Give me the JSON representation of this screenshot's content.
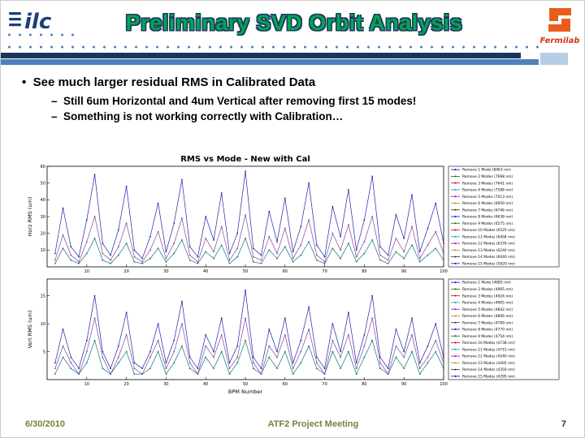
{
  "header": {
    "title": "Preliminary SVD Orbit Analysis",
    "ilc_logo_text": "ilc",
    "fermilab_logo_text": "Fermilab"
  },
  "bullets": {
    "main": "See much larger residual RMS in Calibrated Data",
    "sub_bullets": [
      "Still 6um Horizontal and 4um Vertical after removing first 15 modes!",
      "Something is not working correctly with Calibration…"
    ]
  },
  "footer": {
    "date": "6/30/2010",
    "meeting": "ATF2 Project Meeting",
    "page": "7"
  },
  "colors": {
    "title_green": "#00a651",
    "title_outline": "#1f3864",
    "bar_navy": "#17375e",
    "bar_blue": "#4f81bd",
    "bar_light": "#b8cce4",
    "dot_blue": "#4f81bd",
    "footer_olive": "#7e7d3a",
    "logo_navy": "#1b3f7a",
    "fermilab_red": "#d9341b"
  },
  "chart_style": {
    "legend_palette": [
      "#0000dd",
      "#007700",
      "#cc0000",
      "#00a0a0",
      "#aa00aa",
      "#999900",
      "#333333"
    ]
  },
  "chart_data": [
    {
      "type": "line",
      "title": "RMS vs Mode - New with Cal",
      "ylabel": "Horz RMS (um)",
      "xlabel": "",
      "x_start": 2,
      "x_step": 2,
      "xlim": [
        0,
        100
      ],
      "ylim": [
        0,
        60
      ],
      "xticks": [
        10,
        20,
        30,
        40,
        50,
        60,
        70,
        80,
        90,
        100
      ],
      "yticks": [
        10,
        20,
        30,
        40,
        50,
        60
      ],
      "legend_position": "right",
      "series": [
        {
          "name": "Remove 1 Mode",
          "color": "#2222aa",
          "values": [
            8,
            35,
            12,
            6,
            28,
            55,
            14,
            7,
            22,
            48,
            10,
            5,
            18,
            38,
            9,
            26,
            52,
            12,
            6,
            30,
            16,
            44,
            8,
            20,
            57,
            11,
            7,
            33,
            15,
            41,
            9,
            24,
            50,
            13,
            6,
            36,
            18,
            46,
            10,
            28,
            54,
            12,
            7,
            31,
            17,
            43,
            9,
            23,
            38,
            14
          ]
        },
        {
          "name": "Remove 5 Modes",
          "color": "#884499",
          "values": [
            4,
            19,
            7,
            3,
            15,
            30,
            8,
            4,
            12,
            26,
            6,
            3,
            10,
            21,
            5,
            14,
            29,
            7,
            3,
            17,
            9,
            24,
            4,
            11,
            31,
            6,
            4,
            18,
            8,
            23,
            5,
            13,
            28,
            7,
            3,
            20,
            10,
            25,
            6,
            15,
            30,
            7,
            4,
            17,
            9,
            24,
            5,
            13,
            21,
            8
          ]
        },
        {
          "name": "Remove 15 Modes",
          "color": "#117777",
          "values": [
            2,
            11,
            4,
            2,
            8,
            17,
            4,
            2,
            7,
            14,
            3,
            2,
            5,
            11,
            3,
            8,
            16,
            4,
            2,
            9,
            5,
            13,
            2,
            6,
            17,
            3,
            2,
            10,
            5,
            12,
            3,
            7,
            15,
            4,
            2,
            11,
            5,
            14,
            3,
            8,
            16,
            4,
            2,
            9,
            5,
            13,
            3,
            7,
            11,
            4
          ]
        }
      ],
      "legend": [
        "Remove 1 Mode (8463 nm)",
        "Remove 2 Modes (7698 nm)",
        "Remove 3 Modes (7641 nm)",
        "Remove 4 Modes (7588 nm)",
        "Remove 5 Modes (7013 nm)",
        "Remove 6 Modes (6959 nm)",
        "Remove 7 Modes (6746 nm)",
        "Remove 8 Modes (6638 nm)",
        "Remove 9 Modes (6575 nm)",
        "Remove 10 Modes (6525 nm)",
        "Remove 11 Modes (6404 nm)",
        "Remove 12 Modes (6376 nm)",
        "Remove 13 Modes (6240 nm)",
        "Remove 14 Modes (6040 nm)",
        "Remove 15 Modes (5920 nm)"
      ]
    },
    {
      "type": "line",
      "title": "",
      "ylabel": "Vert RMS (um)",
      "xlabel": "BPM Number",
      "x_start": 2,
      "x_step": 2,
      "xlim": [
        0,
        100
      ],
      "ylim": [
        0,
        18
      ],
      "xticks": [
        10,
        20,
        30,
        40,
        50,
        60,
        70,
        80,
        90,
        100
      ],
      "yticks": [
        5,
        10,
        15
      ],
      "legend_position": "right",
      "series": [
        {
          "name": "Remove 1 Mode",
          "color": "#2222aa",
          "values": [
            3,
            9,
            4,
            2,
            7,
            15,
            5,
            2,
            6,
            12,
            3,
            2,
            5,
            10,
            3,
            7,
            14,
            4,
            2,
            8,
            5,
            11,
            3,
            6,
            16,
            4,
            2,
            9,
            5,
            11,
            3,
            7,
            13,
            4,
            2,
            10,
            5,
            12,
            3,
            8,
            15,
            4,
            2,
            9,
            5,
            11,
            3,
            6,
            10,
            4
          ]
        },
        {
          "name": "Remove 5 Modes",
          "color": "#884499",
          "values": [
            2,
            6,
            3,
            1,
            5,
            11,
            4,
            1,
            4,
            8,
            2,
            1,
            4,
            7,
            2,
            5,
            10,
            3,
            1,
            6,
            4,
            8,
            2,
            4,
            11,
            3,
            1,
            6,
            4,
            8,
            2,
            5,
            9,
            3,
            1,
            7,
            4,
            8,
            2,
            6,
            11,
            3,
            1,
            6,
            4,
            8,
            2,
            4,
            7,
            3
          ]
        },
        {
          "name": "Remove 15 Modes",
          "color": "#117777",
          "values": [
            1,
            4,
            2,
            1,
            3,
            7,
            2,
            1,
            3,
            5,
            1,
            1,
            2,
            5,
            1,
            3,
            6,
            2,
            1,
            4,
            2,
            5,
            1,
            3,
            7,
            2,
            1,
            4,
            2,
            5,
            1,
            3,
            6,
            2,
            1,
            5,
            2,
            5,
            1,
            4,
            7,
            2,
            1,
            4,
            2,
            5,
            1,
            3,
            5,
            2
          ]
        }
      ],
      "legend": [
        "Remove 1 Mode (4985 nm)",
        "Remove 2 Modes (4965 nm)",
        "Remove 3 Modes (4924 nm)",
        "Remove 4 Modes (4905 nm)",
        "Remove 5 Modes (4842 nm)",
        "Remove 6 Modes (4806 nm)",
        "Remove 7 Modes (4789 nm)",
        "Remove 8 Modes (4770 nm)",
        "Remove 9 Modes (4754 nm)",
        "Remove 10 Modes (4738 nm)",
        "Remove 11 Modes (4715 nm)",
        "Remove 12 Modes (4540 nm)",
        "Remove 13 Modes (4405 nm)",
        "Remove 14 Modes (4350 nm)",
        "Remove 15 Modes (4295 nm)"
      ]
    }
  ]
}
